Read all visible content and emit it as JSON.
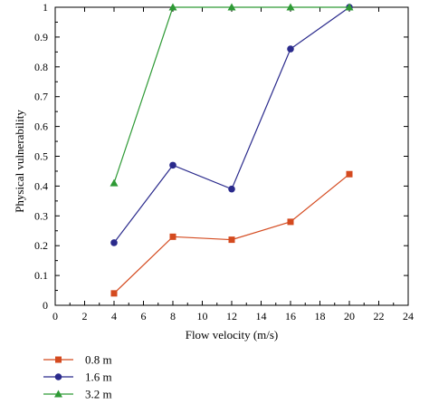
{
  "chart_data": {
    "type": "line",
    "xlabel": "Flow velocity (m/s)",
    "ylabel": "Physical vulnerability",
    "xlim": [
      0,
      24
    ],
    "ylim": [
      0,
      1
    ],
    "x_ticks": [
      0,
      2,
      4,
      6,
      8,
      10,
      12,
      14,
      16,
      18,
      20,
      22,
      24
    ],
    "y_ticks": [
      0,
      0.1,
      0.2,
      0.3,
      0.4,
      0.5,
      0.6,
      0.7,
      0.8,
      0.9,
      1
    ],
    "grid": false,
    "legend_position": "bottom-left",
    "series": [
      {
        "name": "0.8 m",
        "color": "#d44a1f",
        "marker": "square",
        "x": [
          4,
          8,
          12,
          16,
          20
        ],
        "y": [
          0.04,
          0.23,
          0.22,
          0.28,
          0.44
        ]
      },
      {
        "name": "1.6 m",
        "color": "#2a2a8c",
        "marker": "circle",
        "x": [
          4,
          8,
          12,
          16,
          20
        ],
        "y": [
          0.21,
          0.47,
          0.39,
          0.86,
          1.0
        ]
      },
      {
        "name": "3.2 m",
        "color": "#2e9a35",
        "marker": "triangle",
        "x": [
          4,
          8,
          12,
          16,
          20
        ],
        "y": [
          0.41,
          1.0,
          1.0,
          1.0,
          1.0
        ]
      }
    ]
  }
}
